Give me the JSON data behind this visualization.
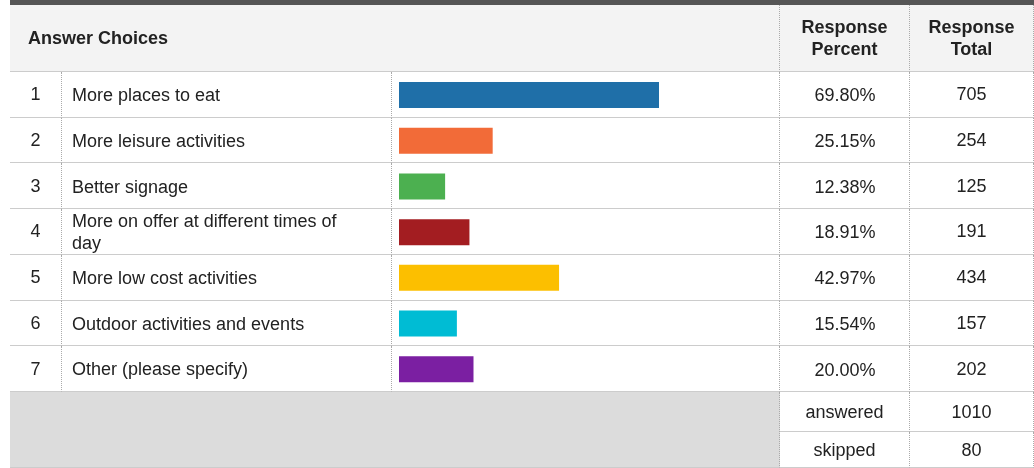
{
  "chart_data": {
    "type": "bar",
    "orientation": "horizontal",
    "categories": [
      "More places to eat",
      "More leisure activities",
      "Better signage",
      "More on offer at different times of day",
      "More low cost activities",
      "Outdoor activities and events",
      "Other (please specify)"
    ],
    "values": [
      69.8,
      25.15,
      12.38,
      18.91,
      42.97,
      15.54,
      20.0
    ],
    "value_labels": [
      "69.80%",
      "25.15%",
      "12.38%",
      "18.91%",
      "42.97%",
      "15.54%",
      "20.00%"
    ],
    "colors": [
      "#1f6fa8",
      "#f26b38",
      "#4cb050",
      "#a31d21",
      "#fcbf00",
      "#00bcd4",
      "#7b1fa2"
    ],
    "tick_labels": "y",
    "grid": false,
    "legend": false,
    "annotations": [
      "Answer Choices",
      "Response Percent",
      "Response Total",
      "answered",
      "1010",
      "skipped",
      "80",
      "1",
      "2",
      "3",
      "4",
      "5",
      "6",
      "7",
      "705",
      "254",
      "125",
      "191",
      "434",
      "157",
      "202"
    ]
  }
}
